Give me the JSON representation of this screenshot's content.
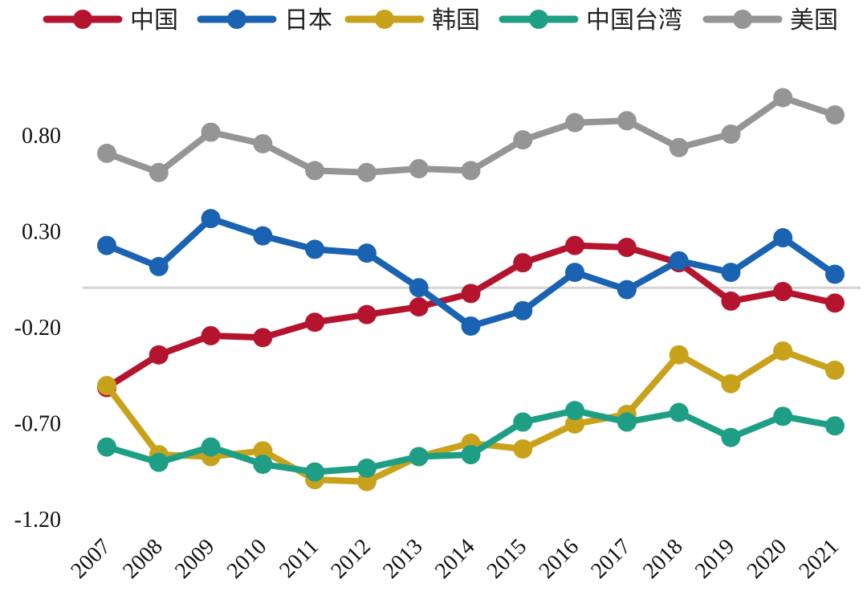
{
  "chart_data": {
    "type": "line",
    "title": "",
    "xlabel": "",
    "ylabel": "",
    "ylim": [
      -1.2,
      1.05
    ],
    "yticks": [
      -1.2,
      -0.7,
      -0.2,
      0.3,
      0.8
    ],
    "ytick_labels": [
      "-1.20",
      "-0.70",
      "-0.20",
      "0.30",
      "0.80"
    ],
    "zero_line": 0,
    "grid": false,
    "legend_position": "top",
    "categories": [
      "2007",
      "2008",
      "2009",
      "2010",
      "2011",
      "2012",
      "2013",
      "2014",
      "2015",
      "2016",
      "2017",
      "2018",
      "2019",
      "2020",
      "2021"
    ],
    "series": [
      {
        "name": "中国",
        "color": "#b5142e",
        "values": [
          -0.52,
          -0.35,
          -0.25,
          -0.26,
          -0.18,
          -0.14,
          -0.1,
          -0.03,
          0.13,
          0.22,
          0.21,
          0.13,
          -0.07,
          -0.02,
          -0.08
        ]
      },
      {
        "name": "日本",
        "color": "#1a62b2",
        "values": [
          0.22,
          0.11,
          0.36,
          0.27,
          0.2,
          0.18,
          0.0,
          -0.2,
          -0.12,
          0.08,
          -0.01,
          0.14,
          0.08,
          0.26,
          0.07
        ]
      },
      {
        "name": "韩国",
        "color": "#c9a21c",
        "values": [
          -0.51,
          -0.87,
          -0.88,
          -0.85,
          -1.0,
          -1.01,
          -0.88,
          -0.81,
          -0.84,
          -0.71,
          -0.66,
          -0.35,
          -0.5,
          -0.33,
          -0.43
        ]
      },
      {
        "name": "中国台湾",
        "color": "#1f9e86",
        "values": [
          -0.83,
          -0.91,
          -0.83,
          -0.92,
          -0.96,
          -0.94,
          -0.88,
          -0.87,
          -0.7,
          -0.64,
          -0.7,
          -0.65,
          -0.78,
          -0.67,
          -0.72
        ]
      },
      {
        "name": "美国",
        "color": "#959595",
        "values": [
          0.7,
          0.6,
          0.81,
          0.75,
          0.61,
          0.6,
          0.62,
          0.61,
          0.77,
          0.86,
          0.87,
          0.73,
          0.8,
          0.99,
          0.9
        ]
      }
    ]
  }
}
